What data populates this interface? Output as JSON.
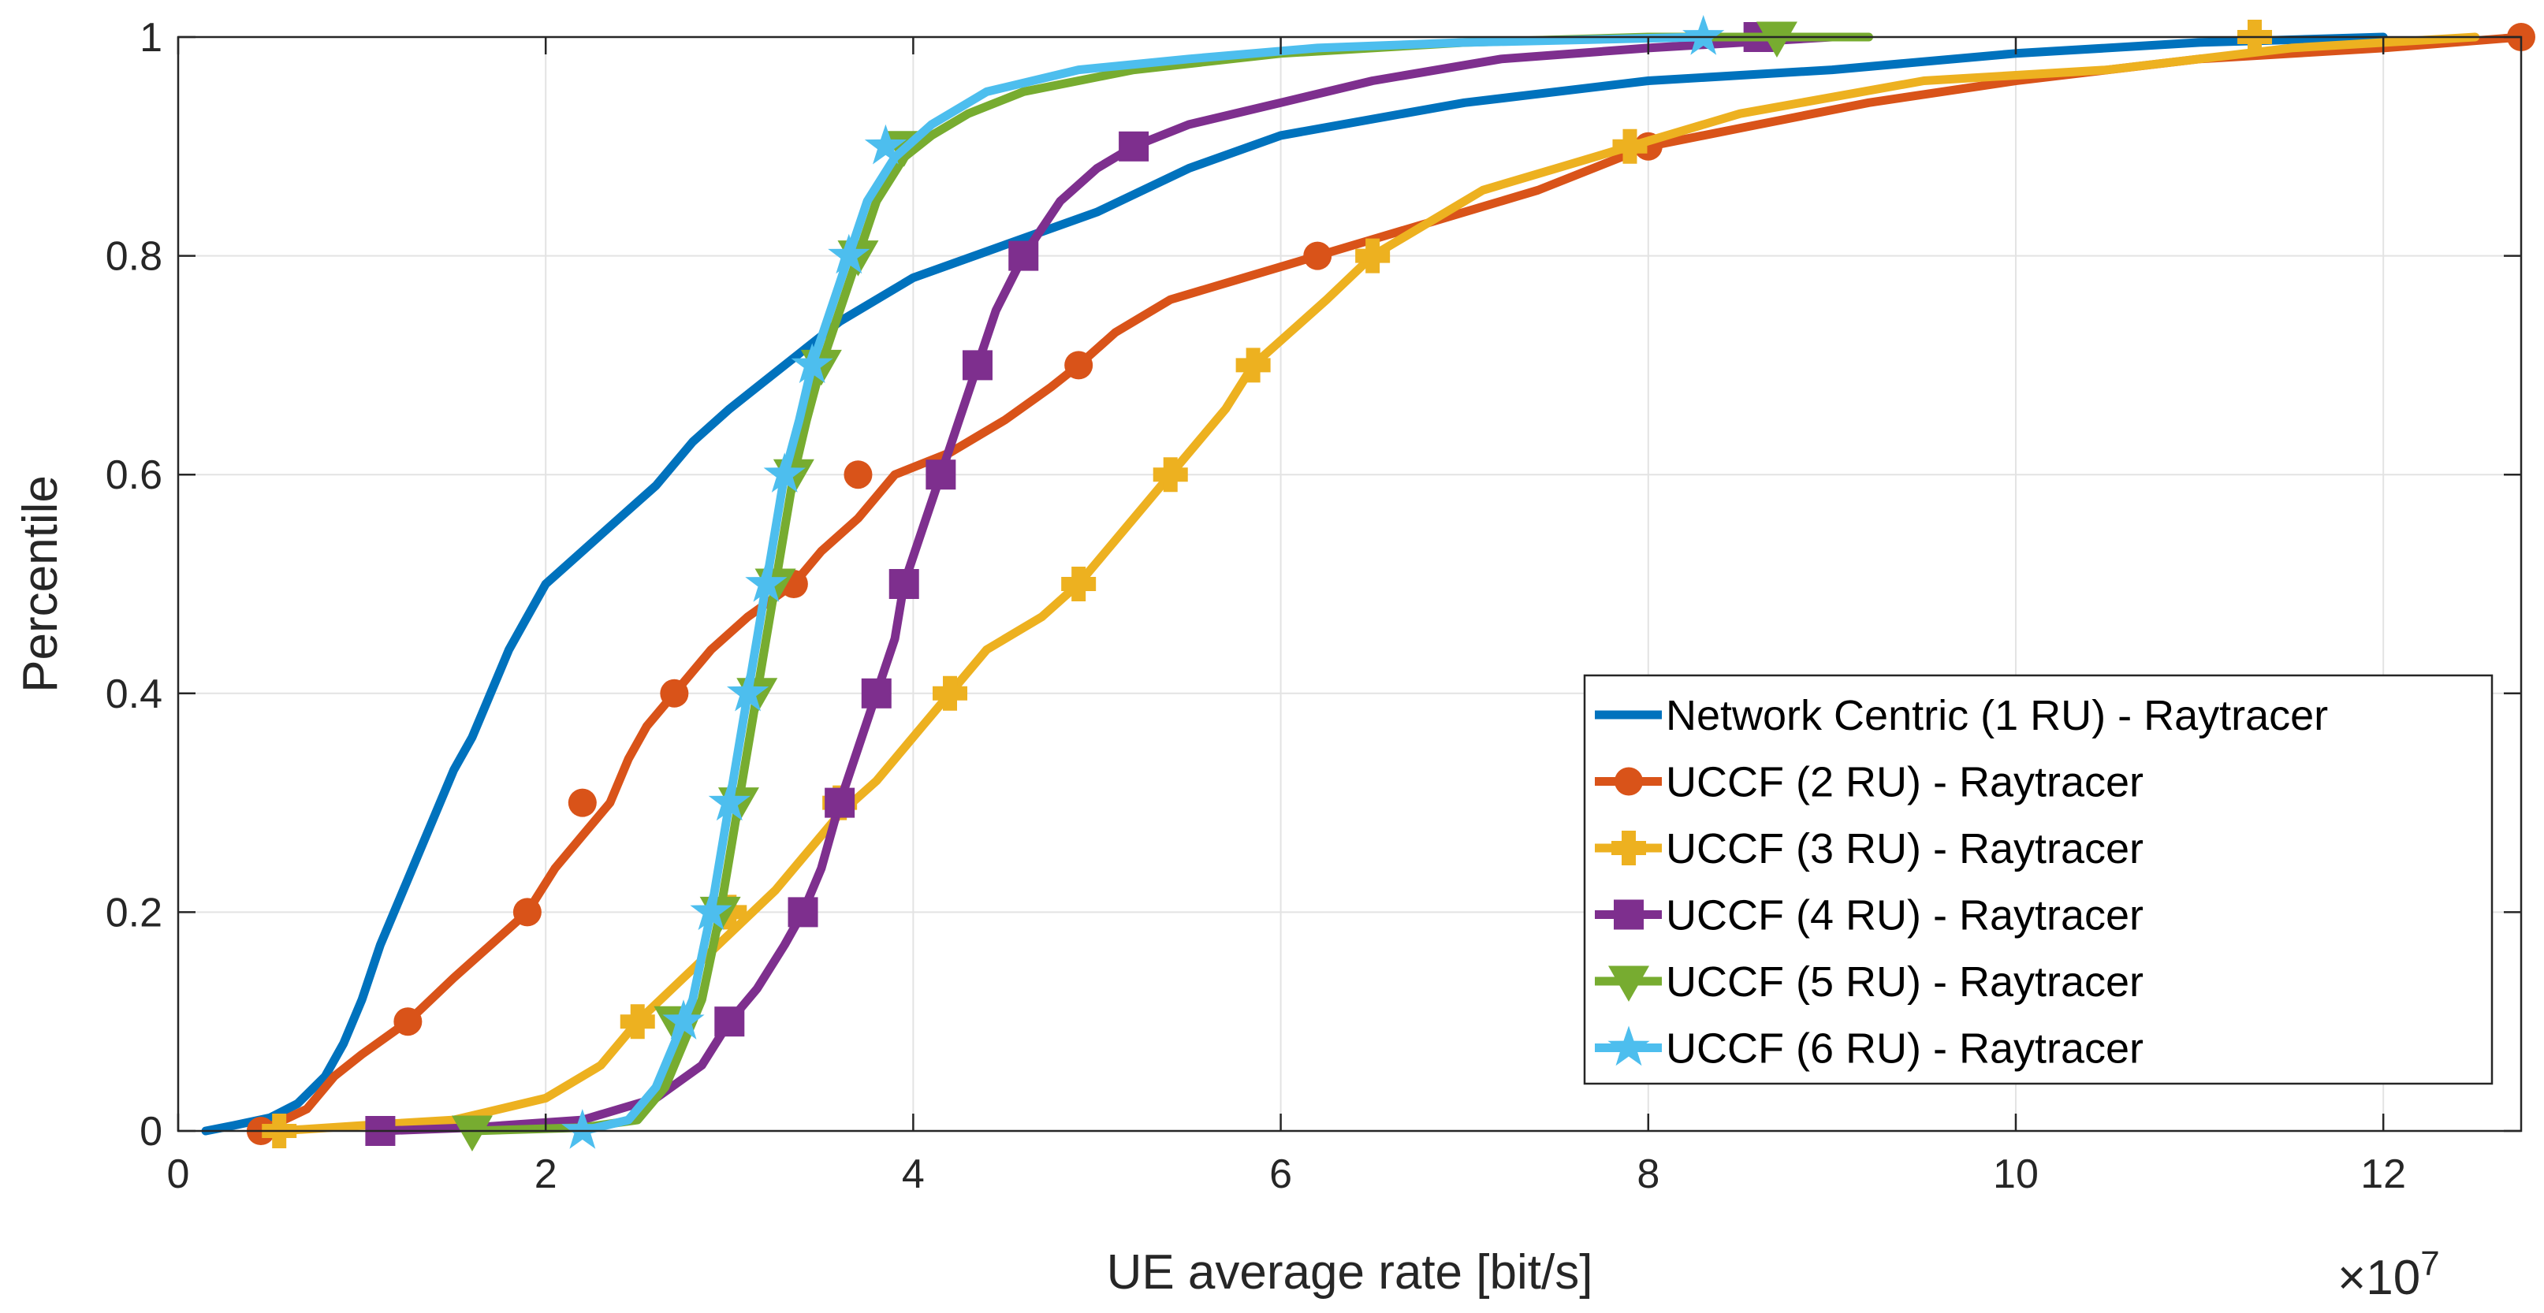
{
  "chart_data": {
    "type": "line",
    "title": "",
    "xlabel": "UE average rate [bit/s]",
    "ylabel": "Percentile",
    "x_exponent_base": "10",
    "x_exponent": "7",
    "xlim": [
      0,
      12.75
    ],
    "ylim": [
      0,
      1
    ],
    "x_unit_scale": 10000000,
    "grid": true,
    "legend_position": "bottom-right",
    "xticks": [
      0,
      2,
      4,
      6,
      8,
      10,
      12
    ],
    "xtick_labels": [
      "0",
      "2",
      "4",
      "6",
      "8",
      "10",
      "12"
    ],
    "yticks": [
      0,
      0.2,
      0.4,
      0.6,
      0.8,
      1
    ],
    "ytick_labels": [
      "0",
      "0.2",
      "0.4",
      "0.6",
      "0.8",
      "1"
    ],
    "series": [
      {
        "name": "Network Centric (1 RU) - Raytracer",
        "color": "#0072BD",
        "marker": "none",
        "points": [
          [
            0.15,
            0
          ],
          [
            0.3,
            0.005
          ],
          [
            0.5,
            0.012
          ],
          [
            0.65,
            0.025
          ],
          [
            0.8,
            0.05
          ],
          [
            0.9,
            0.08
          ],
          [
            1.0,
            0.12
          ],
          [
            1.1,
            0.17
          ],
          [
            1.2,
            0.21
          ],
          [
            1.3,
            0.25
          ],
          [
            1.4,
            0.29
          ],
          [
            1.5,
            0.33
          ],
          [
            1.6,
            0.36
          ],
          [
            1.7,
            0.4
          ],
          [
            1.8,
            0.44
          ],
          [
            1.9,
            0.47
          ],
          [
            2.0,
            0.5
          ],
          [
            2.2,
            0.53
          ],
          [
            2.4,
            0.56
          ],
          [
            2.6,
            0.59
          ],
          [
            2.8,
            0.63
          ],
          [
            3.0,
            0.66
          ],
          [
            3.3,
            0.7
          ],
          [
            3.6,
            0.74
          ],
          [
            4.0,
            0.78
          ],
          [
            4.5,
            0.81
          ],
          [
            5.0,
            0.84
          ],
          [
            5.5,
            0.88
          ],
          [
            6.0,
            0.91
          ],
          [
            7.0,
            0.94
          ],
          [
            8.0,
            0.96
          ],
          [
            9.0,
            0.97
          ],
          [
            10.0,
            0.985
          ],
          [
            11.0,
            0.995
          ],
          [
            12.0,
            1.0
          ]
        ]
      },
      {
        "name": "UCCF (2 RU) - Raytracer",
        "color": "#D95319",
        "marker": "circle",
        "points": [
          [
            0.45,
            0
          ],
          [
            0.7,
            0.02
          ],
          [
            0.85,
            0.05
          ],
          [
            1.0,
            0.07
          ],
          [
            1.25,
            0.1
          ],
          [
            1.5,
            0.14
          ],
          [
            1.7,
            0.17
          ],
          [
            1.9,
            0.2
          ],
          [
            2.05,
            0.24
          ],
          [
            2.2,
            0.27
          ],
          [
            2.35,
            0.3
          ],
          [
            2.45,
            0.34
          ],
          [
            2.55,
            0.37
          ],
          [
            2.7,
            0.4
          ],
          [
            2.9,
            0.44
          ],
          [
            3.1,
            0.47
          ],
          [
            3.35,
            0.5
          ],
          [
            3.5,
            0.53
          ],
          [
            3.7,
            0.56
          ],
          [
            3.9,
            0.6
          ],
          [
            4.2,
            0.62
          ],
          [
            4.5,
            0.65
          ],
          [
            4.75,
            0.68
          ],
          [
            4.9,
            0.7
          ],
          [
            5.1,
            0.73
          ],
          [
            5.4,
            0.76
          ],
          [
            5.8,
            0.78
          ],
          [
            6.2,
            0.8
          ],
          [
            6.8,
            0.83
          ],
          [
            7.4,
            0.86
          ],
          [
            8.0,
            0.9
          ],
          [
            8.6,
            0.92
          ],
          [
            9.2,
            0.94
          ],
          [
            10.0,
            0.96
          ],
          [
            11.0,
            0.98
          ],
          [
            12.0,
            0.99
          ],
          [
            12.75,
            1.0
          ]
        ]
      },
      {
        "name": "UCCF (3 RU) - Raytracer",
        "color": "#EDB120",
        "marker": "plus",
        "points": [
          [
            0.55,
            0
          ],
          [
            1.0,
            0.005
          ],
          [
            1.5,
            0.01
          ],
          [
            2.0,
            0.03
          ],
          [
            2.3,
            0.06
          ],
          [
            2.5,
            0.1
          ],
          [
            2.75,
            0.14
          ],
          [
            3.0,
            0.18
          ],
          [
            3.25,
            0.22
          ],
          [
            3.45,
            0.26
          ],
          [
            3.6,
            0.29
          ],
          [
            3.8,
            0.32
          ],
          [
            3.95,
            0.35
          ],
          [
            4.05,
            0.37
          ],
          [
            4.2,
            0.4
          ],
          [
            4.4,
            0.44
          ],
          [
            4.7,
            0.47
          ],
          [
            4.9,
            0.5
          ],
          [
            5.05,
            0.53
          ],
          [
            5.2,
            0.56
          ],
          [
            5.4,
            0.6
          ],
          [
            5.55,
            0.63
          ],
          [
            5.7,
            0.66
          ],
          [
            5.85,
            0.7
          ],
          [
            6.05,
            0.73
          ],
          [
            6.25,
            0.76
          ],
          [
            6.5,
            0.8
          ],
          [
            6.8,
            0.83
          ],
          [
            7.1,
            0.86
          ],
          [
            7.5,
            0.88
          ],
          [
            7.9,
            0.9
          ],
          [
            8.5,
            0.93
          ],
          [
            9.5,
            0.96
          ],
          [
            10.5,
            0.97
          ],
          [
            11.5,
            0.99
          ],
          [
            12.5,
            1.0
          ]
        ]
      },
      {
        "name": "UCCF (4 RU) - Raytracer",
        "color": "#7E2F8E",
        "marker": "square",
        "points": [
          [
            1.1,
            0
          ],
          [
            1.6,
            0.003
          ],
          [
            2.2,
            0.01
          ],
          [
            2.6,
            0.03
          ],
          [
            2.85,
            0.06
          ],
          [
            3.0,
            0.1
          ],
          [
            3.15,
            0.13
          ],
          [
            3.3,
            0.17
          ],
          [
            3.4,
            0.2
          ],
          [
            3.5,
            0.24
          ],
          [
            3.55,
            0.27
          ],
          [
            3.6,
            0.3
          ],
          [
            3.7,
            0.35
          ],
          [
            3.8,
            0.4
          ],
          [
            3.9,
            0.45
          ],
          [
            3.95,
            0.5
          ],
          [
            4.05,
            0.55
          ],
          [
            4.15,
            0.6
          ],
          [
            4.25,
            0.65
          ],
          [
            4.35,
            0.7
          ],
          [
            4.45,
            0.75
          ],
          [
            4.6,
            0.8
          ],
          [
            4.8,
            0.85
          ],
          [
            5.0,
            0.88
          ],
          [
            5.2,
            0.9
          ],
          [
            5.5,
            0.92
          ],
          [
            6.0,
            0.94
          ],
          [
            6.5,
            0.96
          ],
          [
            7.2,
            0.98
          ],
          [
            8.0,
            0.99
          ],
          [
            9.0,
            1.0
          ]
        ]
      },
      {
        "name": "UCCF (5 RU) - Raytracer",
        "color": "#77AC30",
        "marker": "triangle-down",
        "points": [
          [
            1.6,
            0
          ],
          [
            2.2,
            0.003
          ],
          [
            2.5,
            0.01
          ],
          [
            2.65,
            0.04
          ],
          [
            2.75,
            0.08
          ],
          [
            2.85,
            0.12
          ],
          [
            2.9,
            0.16
          ],
          [
            2.95,
            0.2
          ],
          [
            3.0,
            0.25
          ],
          [
            3.05,
            0.3
          ],
          [
            3.1,
            0.35
          ],
          [
            3.15,
            0.4
          ],
          [
            3.2,
            0.45
          ],
          [
            3.25,
            0.5
          ],
          [
            3.3,
            0.55
          ],
          [
            3.35,
            0.6
          ],
          [
            3.42,
            0.65
          ],
          [
            3.5,
            0.7
          ],
          [
            3.6,
            0.75
          ],
          [
            3.7,
            0.8
          ],
          [
            3.8,
            0.85
          ],
          [
            3.95,
            0.89
          ],
          [
            4.1,
            0.91
          ],
          [
            4.3,
            0.93
          ],
          [
            4.6,
            0.95
          ],
          [
            5.2,
            0.97
          ],
          [
            6.0,
            0.985
          ],
          [
            7.0,
            0.995
          ],
          [
            8.0,
            1.0
          ],
          [
            9.2,
            1.0
          ]
        ]
      },
      {
        "name": "UCCF (6 RU) - Raytracer",
        "color": "#4DBEEE",
        "marker": "pentagram",
        "points": [
          [
            2.2,
            0
          ],
          [
            2.45,
            0.01
          ],
          [
            2.6,
            0.04
          ],
          [
            2.7,
            0.08
          ],
          [
            2.8,
            0.12
          ],
          [
            2.85,
            0.16
          ],
          [
            2.9,
            0.2
          ],
          [
            2.95,
            0.25
          ],
          [
            3.0,
            0.3
          ],
          [
            3.05,
            0.35
          ],
          [
            3.1,
            0.4
          ],
          [
            3.15,
            0.45
          ],
          [
            3.2,
            0.5
          ],
          [
            3.25,
            0.55
          ],
          [
            3.3,
            0.6
          ],
          [
            3.38,
            0.65
          ],
          [
            3.45,
            0.7
          ],
          [
            3.55,
            0.75
          ],
          [
            3.65,
            0.8
          ],
          [
            3.75,
            0.85
          ],
          [
            3.9,
            0.89
          ],
          [
            4.1,
            0.92
          ],
          [
            4.4,
            0.95
          ],
          [
            4.9,
            0.97
          ],
          [
            5.5,
            0.98
          ],
          [
            6.2,
            0.99
          ],
          [
            7.0,
            0.995
          ],
          [
            8.3,
            1.0
          ]
        ]
      }
    ],
    "markers": [
      [],
      [
        [
          0.45,
          0
        ],
        [
          1.25,
          0.1
        ],
        [
          1.9,
          0.2
        ],
        [
          2.2,
          0.3
        ],
        [
          2.7,
          0.4
        ],
        [
          3.35,
          0.5
        ],
        [
          3.7,
          0.6
        ],
        [
          4.9,
          0.7
        ],
        [
          6.2,
          0.8
        ],
        [
          8.0,
          0.9
        ],
        [
          12.75,
          1.0
        ]
      ],
      [
        [
          0.55,
          0
        ],
        [
          2.5,
          0.1
        ],
        [
          3.0,
          0.2
        ],
        [
          3.6,
          0.3
        ],
        [
          4.2,
          0.4
        ],
        [
          4.9,
          0.5
        ],
        [
          5.4,
          0.6
        ],
        [
          5.85,
          0.7
        ],
        [
          6.5,
          0.8
        ],
        [
          7.9,
          0.9
        ],
        [
          11.3,
          1.0
        ]
      ],
      [
        [
          1.1,
          0
        ],
        [
          3.0,
          0.1
        ],
        [
          3.4,
          0.2
        ],
        [
          3.6,
          0.3
        ],
        [
          3.8,
          0.4
        ],
        [
          3.95,
          0.5
        ],
        [
          4.15,
          0.6
        ],
        [
          4.35,
          0.7
        ],
        [
          4.6,
          0.8
        ],
        [
          5.2,
          0.9
        ],
        [
          8.6,
          1.0
        ]
      ],
      [
        [
          1.6,
          0
        ],
        [
          2.7,
          0.1
        ],
        [
          2.95,
          0.2
        ],
        [
          3.05,
          0.3
        ],
        [
          3.15,
          0.4
        ],
        [
          3.25,
          0.5
        ],
        [
          3.35,
          0.6
        ],
        [
          3.5,
          0.7
        ],
        [
          3.7,
          0.8
        ],
        [
          3.95,
          0.9
        ],
        [
          8.7,
          1.0
        ]
      ],
      [
        [
          2.2,
          0
        ],
        [
          2.75,
          0.1
        ],
        [
          2.9,
          0.2
        ],
        [
          3.0,
          0.3
        ],
        [
          3.1,
          0.4
        ],
        [
          3.2,
          0.5
        ],
        [
          3.3,
          0.6
        ],
        [
          3.45,
          0.7
        ],
        [
          3.65,
          0.8
        ],
        [
          3.85,
          0.9
        ],
        [
          8.3,
          1.0
        ]
      ]
    ]
  }
}
